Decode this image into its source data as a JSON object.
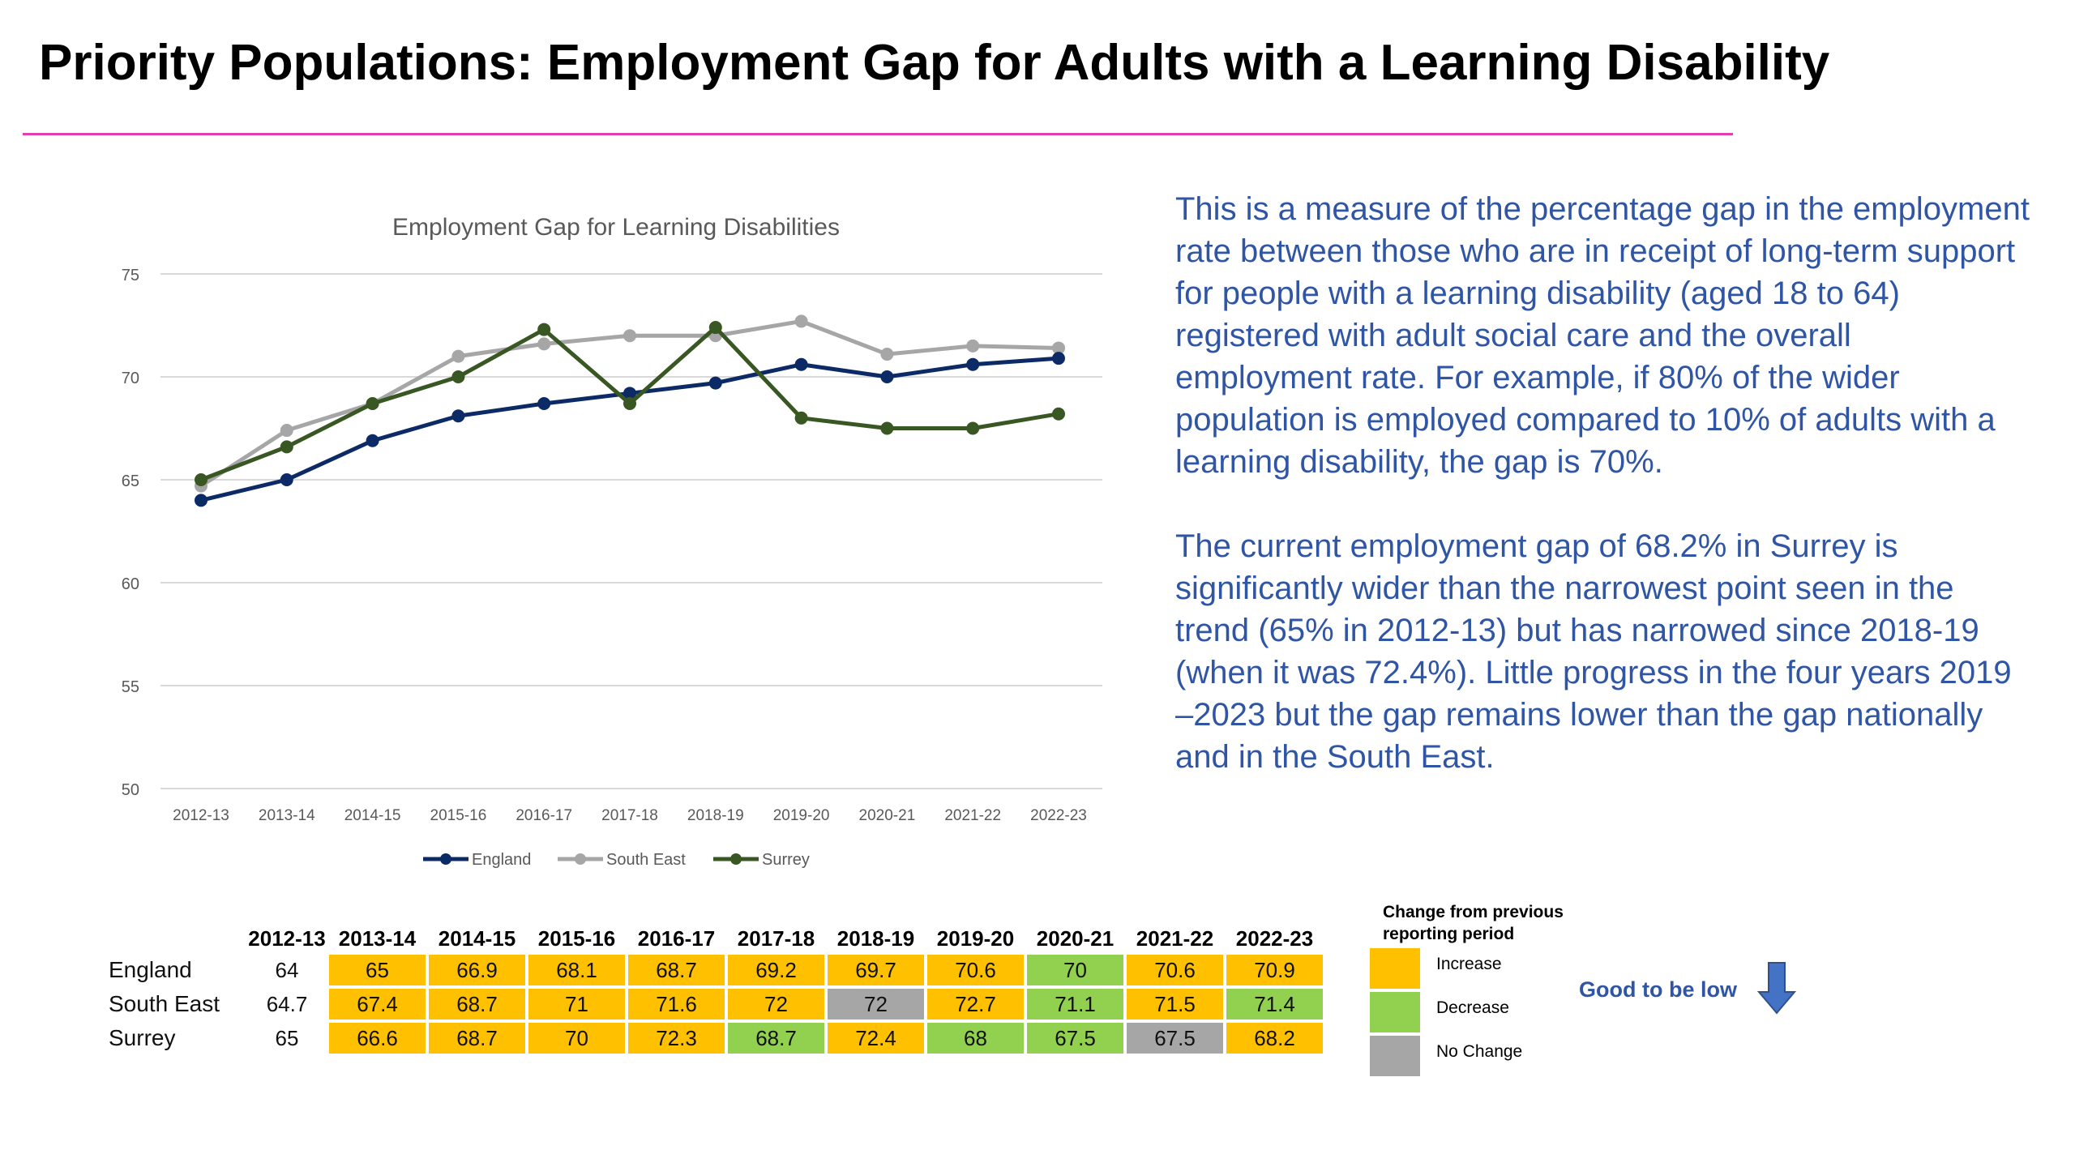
{
  "page": {
    "title": "Priority Populations: Employment Gap for Adults with a Learning Disability",
    "accent_color": "#e040b0"
  },
  "description": {
    "paragraph1": "This is a measure of the percentage gap in the employment rate between those who are in receipt of long-term support for people with a  learning disability (aged 18 to 64) registered with adult social care and the overall employment rate. For example, if 80% of the wider population is employed compared to 10% of adults with a learning disability, the gap is 70%.",
    "paragraph2": "The current employment gap of 68.2% in Surrey is significantly wider than the narrowest point seen in the trend (65% in 2012-13) but has narrowed since 2018-19 (when it was 72.4%). Little progress in the four years 2019 –2023 but the gap remains lower than the gap nationally and in the South East.",
    "color": "#2f55a4"
  },
  "chart_data": {
    "type": "line",
    "title": "Employment Gap for Learning Disabilities",
    "xlabel": "",
    "ylabel": "",
    "categories": [
      "2012-13",
      "2013-14",
      "2014-15",
      "2015-16",
      "2016-17",
      "2017-18",
      "2018-19",
      "2019-20",
      "2020-21",
      "2021-22",
      "2022-23"
    ],
    "ylim": [
      50,
      75
    ],
    "yticks": [
      50,
      55,
      60,
      65,
      70,
      75
    ],
    "grid": true,
    "legend_position": "bottom",
    "series": [
      {
        "name": "England",
        "color": "#0b2a66",
        "values": [
          64,
          65,
          66.9,
          68.1,
          68.7,
          69.2,
          69.7,
          70.6,
          70,
          70.6,
          70.9
        ]
      },
      {
        "name": "South East",
        "color": "#a6a6a6",
        "values": [
          64.7,
          67.4,
          68.7,
          71,
          71.6,
          72,
          72,
          72.7,
          71.1,
          71.5,
          71.4
        ]
      },
      {
        "name": "Surrey",
        "color": "#385723",
        "values": [
          65,
          66.6,
          68.7,
          70,
          72.3,
          68.7,
          72.4,
          68,
          67.5,
          67.5,
          68.2
        ]
      }
    ]
  },
  "table": {
    "years": [
      "2012-13",
      "2013-14",
      "2014-15",
      "2015-16",
      "2016-17",
      "2017-18",
      "2018-19",
      "2019-20",
      "2020-21",
      "2021-22",
      "2022-23"
    ],
    "rows": [
      {
        "name": "England",
        "values": [
          "64",
          "65",
          "66.9",
          "68.1",
          "68.7",
          "69.2",
          "69.7",
          "70.6",
          "70",
          "70.6",
          "70.9"
        ],
        "changes": [
          "none",
          "increase",
          "increase",
          "increase",
          "increase",
          "increase",
          "increase",
          "increase",
          "decrease",
          "increase",
          "increase"
        ]
      },
      {
        "name": "South East",
        "values": [
          "64.7",
          "67.4",
          "68.7",
          "71",
          "71.6",
          "72",
          "72",
          "72.7",
          "71.1",
          "71.5",
          "71.4"
        ],
        "changes": [
          "none",
          "increase",
          "increase",
          "increase",
          "increase",
          "increase",
          "nochange",
          "increase",
          "decrease",
          "increase",
          "decrease"
        ]
      },
      {
        "name": "Surrey",
        "values": [
          "65",
          "66.6",
          "68.7",
          "70",
          "72.3",
          "68.7",
          "72.4",
          "68",
          "67.5",
          "67.5",
          "68.2"
        ],
        "changes": [
          "none",
          "increase",
          "increase",
          "increase",
          "increase",
          "decrease",
          "increase",
          "decrease",
          "decrease",
          "nochange",
          "increase"
        ]
      }
    ]
  },
  "change_legend": {
    "title": "Change from previous reporting period",
    "items": [
      {
        "key": "increase",
        "label": "Increase",
        "color": "#ffc000"
      },
      {
        "key": "decrease",
        "label": "Decrease",
        "color": "#92d050"
      },
      {
        "key": "nochange",
        "label": "No Change",
        "color": "#a6a6a6"
      }
    ],
    "good_to_be_low": "Good to be low",
    "arrow_color": "#4472c4"
  }
}
